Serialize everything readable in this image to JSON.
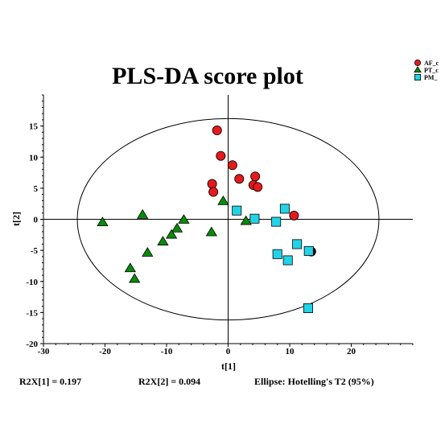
{
  "chart_data": {
    "type": "scatter",
    "title": "PLS-DA score plot",
    "xlabel": "t[1]",
    "ylabel": "t[2]",
    "xlim": [
      -30,
      30
    ],
    "ylim": [
      -20,
      20
    ],
    "xticks": [
      -30,
      -20,
      -10,
      0,
      10,
      20
    ],
    "yticks": [
      -20,
      -15,
      -10,
      -5,
      0,
      5,
      10,
      15
    ],
    "grid": false,
    "legend_position": "top-right",
    "ellipse": {
      "label": "Ellipse: Hotelling's T2 (95%)",
      "rx": 24.5,
      "ry": 16.2
    },
    "series": [
      {
        "name": "AF_c",
        "marker": "circle",
        "color": "#e41a1c",
        "points": [
          [
            -1.8,
            14.3
          ],
          [
            -1.2,
            10.2
          ],
          [
            0.7,
            8.7
          ],
          [
            4.4,
            6.9
          ],
          [
            1.8,
            6.5
          ],
          [
            -2.6,
            5.7
          ],
          [
            4.1,
            5.5
          ],
          [
            4.8,
            5.2
          ],
          [
            -2.4,
            4.4
          ],
          [
            10.7,
            0.6
          ]
        ]
      },
      {
        "name": "PT_c",
        "marker": "triangle",
        "color": "#0a8a0a",
        "points": [
          [
            -20.4,
            -0.5
          ],
          [
            -13.9,
            0.7
          ],
          [
            -7.2,
            -0.1
          ],
          [
            -0.8,
            2.9
          ],
          [
            -8.3,
            -1.5
          ],
          [
            -2.7,
            -2.1
          ],
          [
            -9.2,
            -2.5
          ],
          [
            -10.6,
            -3.6
          ],
          [
            -13.1,
            -5.4
          ],
          [
            -15.9,
            -7.9
          ],
          [
            -15.2,
            -9.6
          ],
          [
            2.9,
            -0.3
          ]
        ]
      },
      {
        "name": "PM_",
        "marker": "square",
        "color": "#22d3e6",
        "points": [
          [
            1.4,
            1.4
          ],
          [
            9.2,
            1.7
          ],
          [
            4.3,
            0.1
          ],
          [
            7.8,
            -0.4
          ],
          [
            11.2,
            -4.0
          ],
          [
            13.1,
            -5.1
          ],
          [
            8.0,
            -5.6
          ],
          [
            9.7,
            -6.6
          ],
          [
            13.0,
            -14.3
          ]
        ]
      }
    ],
    "extra_points": [
      [
        13.5,
        -5.2
      ]
    ],
    "stats": [
      {
        "label": "R2X[1] = 0.197"
      },
      {
        "label": "R2X[2] = 0.094"
      }
    ]
  }
}
